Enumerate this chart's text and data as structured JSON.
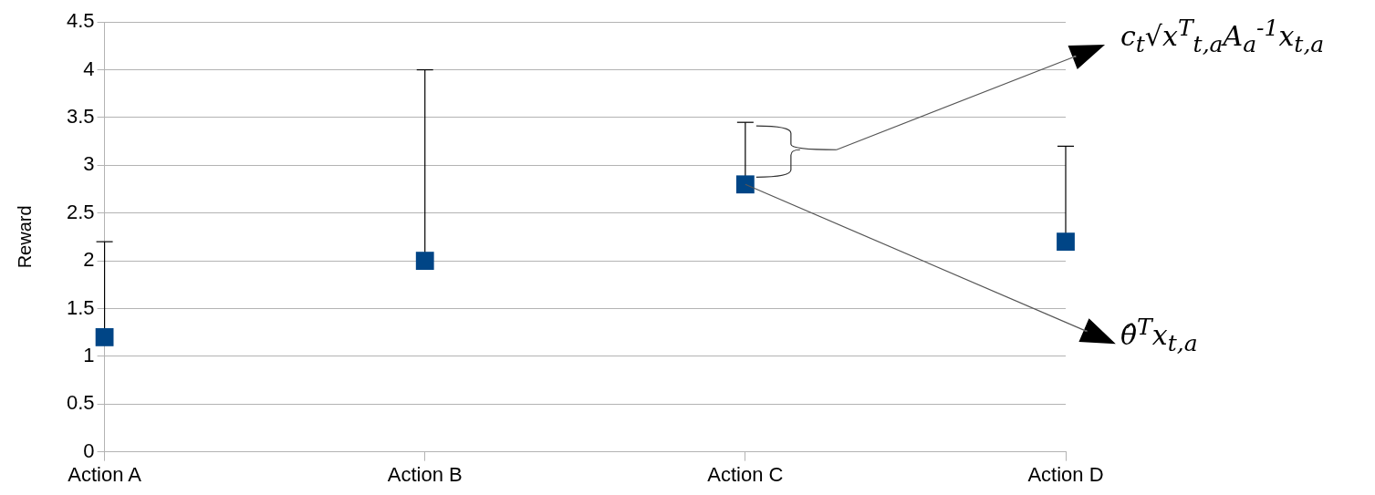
{
  "chart_data": {
    "type": "scatter",
    "ylabel": "Reward",
    "categories": [
      "Action A",
      "Action B",
      "Action C",
      "Action D"
    ],
    "series": [
      {
        "color": "#004586",
        "values": [
          1.2,
          2.0,
          2.8,
          2.2
        ],
        "errors": [
          [
            1.2,
            2.2
          ],
          [
            2.0,
            4.0
          ],
          [
            2.8,
            3.45
          ],
          [
            2.2,
            3.2
          ]
        ]
      }
    ],
    "ylim": [
      0,
      4.5
    ],
    "yticks": [
      0,
      0.5,
      1,
      1.5,
      2,
      2.5,
      3,
      3.5,
      4,
      4.5
    ],
    "grid": "y",
    "legend": false,
    "marker": "square",
    "annotations": [
      "c$_{t}$√x$^{T}$$_{t,a}$A$_{a}$$^{-1}$x$_{t,a}$",
      {
        "text": "θ̂$^{T}$x$_{t,a}$",
        "x": "Action C",
        "y": 2.8
      }
    ]
  }
}
